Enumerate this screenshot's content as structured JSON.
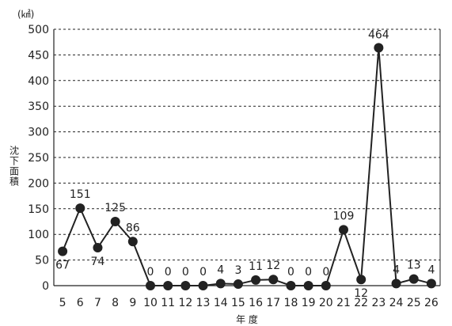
{
  "chart_data": {
    "type": "line",
    "unit": "(㎢)",
    "ylabel": "沈下面積",
    "xlabel": "年 度",
    "ylim": [
      0,
      500
    ],
    "yticks": [
      0,
      50,
      100,
      150,
      200,
      250,
      300,
      350,
      400,
      450,
      500
    ],
    "grid": true,
    "categories": [
      "5",
      "6",
      "7",
      "8",
      "9",
      "10",
      "11",
      "12",
      "13",
      "14",
      "15",
      "16",
      "17",
      "18",
      "19",
      "20",
      "21",
      "22",
      "23",
      "24",
      "25",
      "26"
    ],
    "series": [
      {
        "values": [
          67,
          151,
          74,
          125,
          86,
          0,
          0,
          0,
          0,
          4,
          3,
          11,
          12,
          0,
          0,
          0,
          109,
          12,
          464,
          4,
          13,
          4
        ]
      }
    ],
    "data_labels": [
      "67",
      "151",
      "74",
      "125",
      "86",
      "0",
      "0",
      "0",
      "0",
      "4",
      "3",
      "11",
      "12",
      "0",
      "0",
      "0",
      "109",
      "12",
      "464",
      "4",
      "13",
      "4"
    ],
    "colors": {
      "line": "#222222",
      "grid": "#222222",
      "axis": "#222222"
    }
  }
}
